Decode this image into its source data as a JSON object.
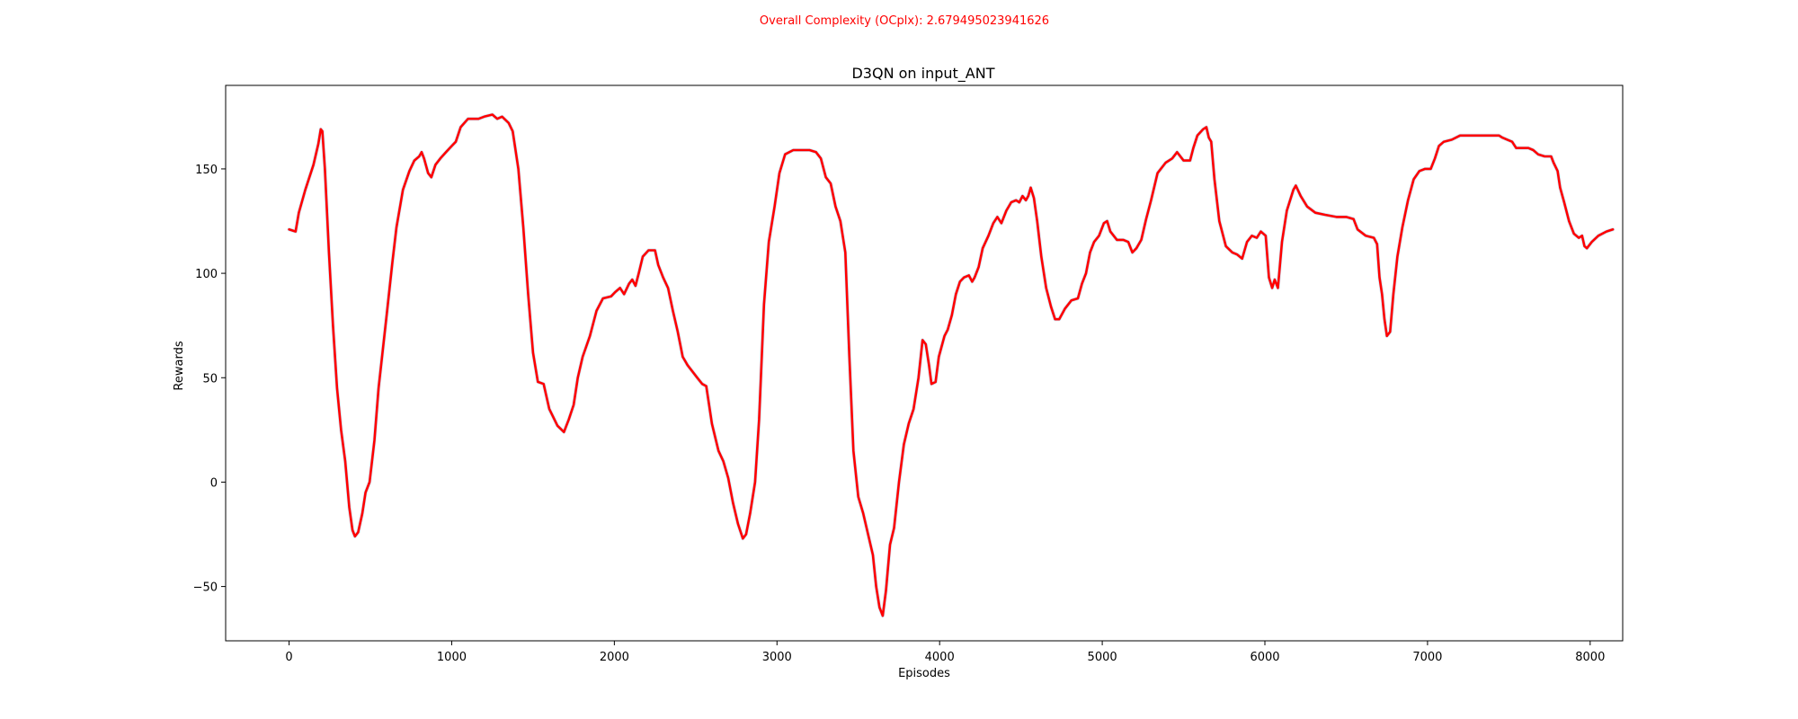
{
  "chart_data": {
    "type": "line",
    "suptitle": "Overall Complexity (OCplx): 2.679495023941626",
    "suptitle_color": "#ff0000",
    "title": "D3QN on input_ANT",
    "xlabel": "Episodes",
    "ylabel": "Rewards",
    "xlim": [
      -390,
      8200
    ],
    "ylim": [
      -76,
      190
    ],
    "xticks": [
      0,
      1000,
      2000,
      3000,
      4000,
      5000,
      6000,
      7000,
      8000
    ],
    "xtick_labels": [
      "0",
      "1000",
      "2000",
      "3000",
      "4000",
      "5000",
      "6000",
      "7000",
      "8000"
    ],
    "yticks": [
      -50,
      0,
      50,
      100,
      150
    ],
    "ytick_labels": [
      "−50",
      "0",
      "50",
      "100",
      "150"
    ],
    "grid": false,
    "series": [
      {
        "color": "#ff0000",
        "band_color": "#aed6f1",
        "points": [
          [
            0,
            121
          ],
          [
            40,
            120
          ],
          [
            60,
            129
          ],
          [
            100,
            140
          ],
          [
            150,
            152
          ],
          [
            180,
            162
          ],
          [
            195,
            169
          ],
          [
            205,
            168
          ],
          [
            220,
            150
          ],
          [
            245,
            110
          ],
          [
            270,
            75
          ],
          [
            295,
            45
          ],
          [
            320,
            25
          ],
          [
            345,
            10
          ],
          [
            370,
            -12
          ],
          [
            390,
            -23
          ],
          [
            405,
            -26
          ],
          [
            425,
            -24
          ],
          [
            450,
            -15
          ],
          [
            470,
            -5
          ],
          [
            495,
            0
          ],
          [
            525,
            20
          ],
          [
            550,
            45
          ],
          [
            600,
            80
          ],
          [
            635,
            105
          ],
          [
            660,
            122
          ],
          [
            700,
            140
          ],
          [
            740,
            149
          ],
          [
            770,
            154
          ],
          [
            800,
            156
          ],
          [
            815,
            158
          ],
          [
            830,
            155
          ],
          [
            855,
            148
          ],
          [
            875,
            146
          ],
          [
            900,
            152
          ],
          [
            930,
            155
          ],
          [
            965,
            158
          ],
          [
            1000,
            161
          ],
          [
            1025,
            163
          ],
          [
            1055,
            170
          ],
          [
            1100,
            174
          ],
          [
            1135,
            174
          ],
          [
            1165,
            174
          ],
          [
            1200,
            175
          ],
          [
            1250,
            176
          ],
          [
            1280,
            174
          ],
          [
            1310,
            175
          ],
          [
            1350,
            172
          ],
          [
            1375,
            168
          ],
          [
            1410,
            150
          ],
          [
            1440,
            122
          ],
          [
            1470,
            90
          ],
          [
            1500,
            62
          ],
          [
            1530,
            48
          ],
          [
            1565,
            47
          ],
          [
            1600,
            35
          ],
          [
            1650,
            27
          ],
          [
            1690,
            24
          ],
          [
            1720,
            30
          ],
          [
            1750,
            37
          ],
          [
            1775,
            50
          ],
          [
            1805,
            60
          ],
          [
            1850,
            70
          ],
          [
            1890,
            82
          ],
          [
            1930,
            88
          ],
          [
            1980,
            89
          ],
          [
            2005,
            91
          ],
          [
            2035,
            93
          ],
          [
            2060,
            90
          ],
          [
            2090,
            95
          ],
          [
            2110,
            97
          ],
          [
            2130,
            94
          ],
          [
            2150,
            100
          ],
          [
            2175,
            108
          ],
          [
            2210,
            111
          ],
          [
            2250,
            111
          ],
          [
            2270,
            104
          ],
          [
            2300,
            98
          ],
          [
            2330,
            93
          ],
          [
            2360,
            82
          ],
          [
            2390,
            72
          ],
          [
            2420,
            60
          ],
          [
            2450,
            56
          ],
          [
            2480,
            53
          ],
          [
            2510,
            50
          ],
          [
            2540,
            47
          ],
          [
            2565,
            46
          ],
          [
            2600,
            28
          ],
          [
            2640,
            15
          ],
          [
            2670,
            10
          ],
          [
            2700,
            2
          ],
          [
            2730,
            -10
          ],
          [
            2760,
            -20
          ],
          [
            2790,
            -27
          ],
          [
            2810,
            -25
          ],
          [
            2835,
            -15
          ],
          [
            2865,
            0
          ],
          [
            2890,
            30
          ],
          [
            2920,
            85
          ],
          [
            2950,
            115
          ],
          [
            2985,
            132
          ],
          [
            3015,
            148
          ],
          [
            3050,
            157
          ],
          [
            3100,
            159
          ],
          [
            3150,
            159
          ],
          [
            3200,
            159
          ],
          [
            3240,
            158
          ],
          [
            3270,
            155
          ],
          [
            3300,
            146
          ],
          [
            3330,
            143
          ],
          [
            3360,
            132
          ],
          [
            3390,
            125
          ],
          [
            3420,
            110
          ],
          [
            3445,
            60
          ],
          [
            3470,
            15
          ],
          [
            3500,
            -7
          ],
          [
            3530,
            -15
          ],
          [
            3560,
            -25
          ],
          [
            3590,
            -35
          ],
          [
            3610,
            -50
          ],
          [
            3630,
            -60
          ],
          [
            3650,
            -64
          ],
          [
            3670,
            -52
          ],
          [
            3695,
            -30
          ],
          [
            3720,
            -22
          ],
          [
            3750,
            0
          ],
          [
            3780,
            18
          ],
          [
            3810,
            28
          ],
          [
            3840,
            35
          ],
          [
            3870,
            50
          ],
          [
            3895,
            68
          ],
          [
            3915,
            66
          ],
          [
            3935,
            56
          ],
          [
            3950,
            47
          ],
          [
            3975,
            48
          ],
          [
            3995,
            60
          ],
          [
            4030,
            70
          ],
          [
            4050,
            73
          ],
          [
            4075,
            80
          ],
          [
            4100,
            90
          ],
          [
            4125,
            96
          ],
          [
            4150,
            98
          ],
          [
            4180,
            99
          ],
          [
            4200,
            96
          ],
          [
            4215,
            98
          ],
          [
            4240,
            103
          ],
          [
            4265,
            112
          ],
          [
            4300,
            118
          ],
          [
            4330,
            124
          ],
          [
            4355,
            127
          ],
          [
            4380,
            124
          ],
          [
            4410,
            130
          ],
          [
            4440,
            134
          ],
          [
            4470,
            135
          ],
          [
            4490,
            134
          ],
          [
            4510,
            137
          ],
          [
            4530,
            135
          ],
          [
            4545,
            137
          ],
          [
            4560,
            141
          ],
          [
            4580,
            136
          ],
          [
            4600,
            125
          ],
          [
            4625,
            108
          ],
          [
            4655,
            93
          ],
          [
            4685,
            84
          ],
          [
            4710,
            78
          ],
          [
            4735,
            78
          ],
          [
            4770,
            83
          ],
          [
            4810,
            87
          ],
          [
            4850,
            88
          ],
          [
            4875,
            95
          ],
          [
            4900,
            100
          ],
          [
            4925,
            110
          ],
          [
            4950,
            115
          ],
          [
            4980,
            118
          ],
          [
            5010,
            124
          ],
          [
            5030,
            125
          ],
          [
            5050,
            120
          ],
          [
            5090,
            116
          ],
          [
            5130,
            116
          ],
          [
            5160,
            115
          ],
          [
            5185,
            110
          ],
          [
            5210,
            112
          ],
          [
            5240,
            116
          ],
          [
            5270,
            126
          ],
          [
            5300,
            135
          ],
          [
            5340,
            148
          ],
          [
            5390,
            153
          ],
          [
            5430,
            155
          ],
          [
            5460,
            158
          ],
          [
            5500,
            154
          ],
          [
            5540,
            154
          ],
          [
            5560,
            160
          ],
          [
            5585,
            166
          ],
          [
            5620,
            169
          ],
          [
            5640,
            170
          ],
          [
            5655,
            165
          ],
          [
            5670,
            163
          ],
          [
            5690,
            145
          ],
          [
            5720,
            125
          ],
          [
            5760,
            113
          ],
          [
            5800,
            110
          ],
          [
            5830,
            109
          ],
          [
            5860,
            107
          ],
          [
            5890,
            115
          ],
          [
            5920,
            118
          ],
          [
            5950,
            117
          ],
          [
            5975,
            120
          ],
          [
            6005,
            118
          ],
          [
            6025,
            98
          ],
          [
            6045,
            93
          ],
          [
            6060,
            97
          ],
          [
            6080,
            93
          ],
          [
            6105,
            115
          ],
          [
            6135,
            130
          ],
          [
            6175,
            140
          ],
          [
            6190,
            142
          ],
          [
            6220,
            137
          ],
          [
            6260,
            132
          ],
          [
            6310,
            129
          ],
          [
            6370,
            128
          ],
          [
            6440,
            127
          ],
          [
            6500,
            127
          ],
          [
            6545,
            126
          ],
          [
            6570,
            121
          ],
          [
            6620,
            118
          ],
          [
            6670,
            117
          ],
          [
            6690,
            114
          ],
          [
            6705,
            98
          ],
          [
            6720,
            90
          ],
          [
            6735,
            78
          ],
          [
            6750,
            70
          ],
          [
            6770,
            72
          ],
          [
            6790,
            90
          ],
          [
            6815,
            108
          ],
          [
            6845,
            122
          ],
          [
            6880,
            135
          ],
          [
            6915,
            145
          ],
          [
            6950,
            149
          ],
          [
            6985,
            150
          ],
          [
            7020,
            150
          ],
          [
            7045,
            155
          ],
          [
            7070,
            161
          ],
          [
            7100,
            163
          ],
          [
            7150,
            164
          ],
          [
            7200,
            166
          ],
          [
            7275,
            166
          ],
          [
            7350,
            166
          ],
          [
            7420,
            166
          ],
          [
            7440,
            166
          ],
          [
            7460,
            165
          ],
          [
            7490,
            164
          ],
          [
            7520,
            163
          ],
          [
            7545,
            160
          ],
          [
            7570,
            160
          ],
          [
            7590,
            160
          ],
          [
            7620,
            160
          ],
          [
            7650,
            159
          ],
          [
            7680,
            157
          ],
          [
            7720,
            156
          ],
          [
            7760,
            156
          ],
          [
            7775,
            153
          ],
          [
            7800,
            149
          ],
          [
            7815,
            141
          ],
          [
            7840,
            134
          ],
          [
            7870,
            125
          ],
          [
            7900,
            119
          ],
          [
            7930,
            117
          ],
          [
            7950,
            118
          ],
          [
            7965,
            113
          ],
          [
            7980,
            112
          ],
          [
            8010,
            115
          ],
          [
            8050,
            118
          ],
          [
            8100,
            120
          ],
          [
            8140,
            121
          ]
        ]
      }
    ]
  }
}
